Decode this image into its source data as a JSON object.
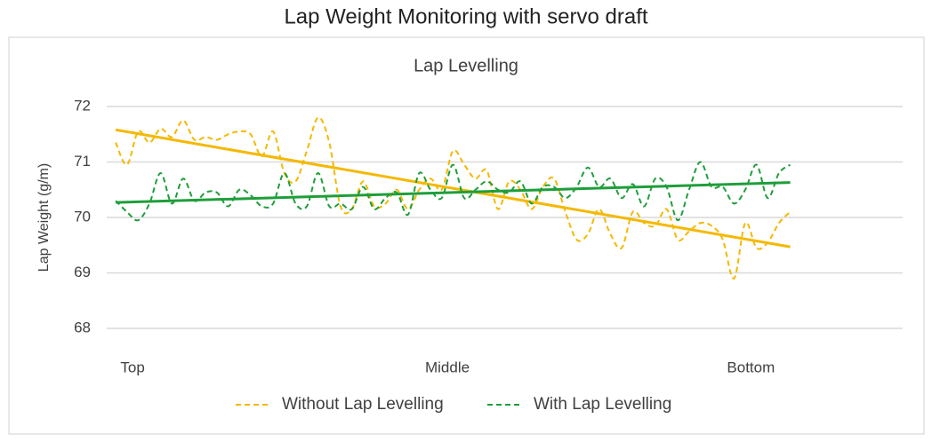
{
  "page_title": "Lap Weight Monitoring with servo draft",
  "chart_data": {
    "type": "line",
    "title": "Lap Levelling",
    "ylabel": "Lap Weight (g/m)",
    "x": [
      0,
      1,
      2,
      3,
      4,
      5,
      6,
      7,
      8,
      9,
      10,
      11,
      12,
      13,
      14,
      15,
      16,
      17,
      18,
      19,
      20,
      21,
      22,
      23,
      24,
      25,
      26,
      27,
      28,
      29,
      30,
      31,
      32,
      33,
      34,
      35,
      36,
      37,
      38,
      39,
      40,
      41,
      42,
      43,
      44,
      45,
      46,
      47,
      48,
      49,
      50,
      51,
      52,
      53,
      54,
      55,
      56,
      57,
      58,
      59,
      60
    ],
    "xlim": [
      -0.8,
      70
    ],
    "xticks": [
      {
        "value": 1.5,
        "label": "Top"
      },
      {
        "value": 29.5,
        "label": "Middle"
      },
      {
        "value": 56.5,
        "label": "Bottom"
      }
    ],
    "ylim": [
      68,
      72
    ],
    "yticks": [
      68,
      69,
      70,
      71,
      72
    ],
    "grid": true,
    "series": [
      {
        "name": "Without Lap Levelling",
        "color": "#f5b800",
        "dashed": true,
        "values": [
          71.35,
          70.95,
          71.55,
          71.35,
          71.6,
          71.45,
          71.75,
          71.4,
          71.45,
          71.4,
          71.5,
          71.55,
          71.5,
          71.1,
          71.55,
          70.8,
          70.65,
          71.2,
          71.8,
          71.35,
          70.2,
          70.15,
          70.65,
          70.2,
          70.25,
          70.5,
          70.15,
          70.5,
          70.7,
          70.5,
          71.2,
          70.95,
          70.7,
          70.85,
          70.15,
          70.65,
          70.5,
          70.15,
          70.55,
          70.7,
          70.1,
          69.6,
          69.7,
          70.15,
          69.7,
          69.45,
          70.1,
          69.9,
          69.85,
          70.15,
          69.6,
          69.75,
          69.9,
          69.85,
          69.6,
          68.9,
          69.9,
          69.45,
          69.55,
          69.9,
          70.1
        ],
        "trend": [
          71.58,
          69.47
        ]
      },
      {
        "name": "With Lap Levelling",
        "color": "#1e9e3a",
        "dashed": true,
        "values": [
          70.3,
          70.1,
          69.95,
          70.25,
          70.8,
          70.25,
          70.7,
          70.3,
          70.45,
          70.45,
          70.2,
          70.5,
          70.4,
          70.2,
          70.25,
          70.8,
          70.25,
          70.2,
          70.8,
          70.2,
          70.25,
          70.15,
          70.55,
          70.15,
          70.35,
          70.45,
          70.05,
          70.8,
          70.5,
          70.35,
          70.95,
          70.35,
          70.5,
          70.65,
          70.5,
          70.45,
          70.65,
          70.25,
          70.55,
          70.55,
          70.35,
          70.55,
          70.9,
          70.55,
          70.7,
          70.35,
          70.6,
          70.2,
          70.7,
          70.55,
          69.95,
          70.5,
          71.0,
          70.55,
          70.55,
          70.25,
          70.5,
          70.95,
          70.35,
          70.8,
          70.95
        ],
        "trend": [
          70.27,
          70.63
        ]
      }
    ]
  }
}
